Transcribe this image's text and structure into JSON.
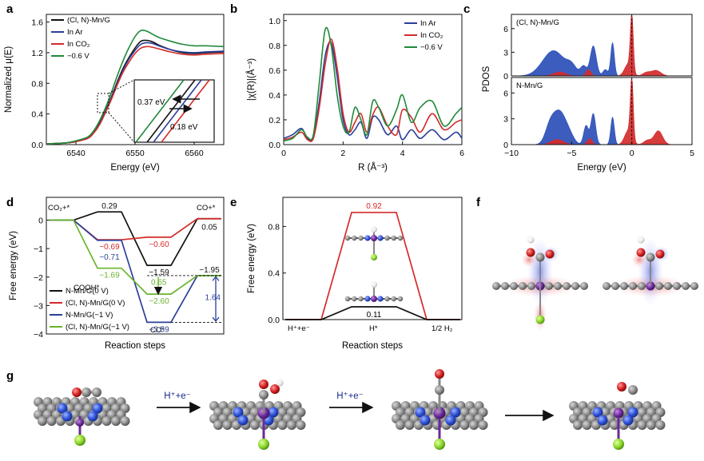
{
  "figure": {
    "panel_letters": [
      "a",
      "b",
      "c",
      "d",
      "e",
      "f",
      "g"
    ]
  },
  "chart_data": [
    {
      "id": "a",
      "type": "line",
      "xlabel": "Energy (eV)",
      "ylabel": "Normalized μ(E)",
      "xlim": [
        6535,
        6565
      ],
      "ylim": [
        0,
        1.7
      ],
      "xticks": [
        "6540",
        "6550",
        "6560"
      ],
      "yticks": [
        "0.0",
        "0.4",
        "0.8",
        "1.2",
        "1.6"
      ],
      "legend": [
        "(Cl, N)-Mn/G",
        "In Ar",
        "In CO₂",
        "−0.6 V"
      ],
      "annotations": [
        "0.37 eV",
        "0.18 eV"
      ],
      "series": [
        {
          "name": "(Cl, N)-Mn/G",
          "color": "#111111",
          "x": [
            6535,
            6538,
            6540,
            6542,
            6543,
            6544,
            6545,
            6546,
            6547,
            6548,
            6549,
            6550,
            6551,
            6552,
            6553,
            6554,
            6556,
            6558,
            6560,
            6562,
            6565
          ],
          "y": [
            0.01,
            0.02,
            0.04,
            0.09,
            0.16,
            0.28,
            0.44,
            0.62,
            0.82,
            1.0,
            1.14,
            1.26,
            1.35,
            1.36,
            1.34,
            1.3,
            1.24,
            1.2,
            1.19,
            1.2,
            1.21
          ]
        },
        {
          "name": "In Ar",
          "color": "#2a3f9a",
          "x": [
            6535,
            6538,
            6540,
            6542,
            6543,
            6544,
            6545,
            6546,
            6547,
            6548,
            6549,
            6550,
            6551,
            6552,
            6553,
            6554,
            6556,
            6558,
            6560,
            6562,
            6565
          ],
          "y": [
            0.01,
            0.02,
            0.04,
            0.09,
            0.16,
            0.27,
            0.43,
            0.61,
            0.8,
            0.98,
            1.12,
            1.23,
            1.31,
            1.33,
            1.32,
            1.29,
            1.24,
            1.21,
            1.2,
            1.21,
            1.22
          ]
        },
        {
          "name": "In CO₂",
          "color": "#d42a2a",
          "x": [
            6535,
            6538,
            6540,
            6542,
            6543,
            6544,
            6545,
            6546,
            6547,
            6548,
            6549,
            6550,
            6551,
            6552,
            6553,
            6554,
            6556,
            6558,
            6560,
            6562,
            6565
          ],
          "y": [
            0.01,
            0.02,
            0.04,
            0.08,
            0.15,
            0.26,
            0.42,
            0.59,
            0.78,
            0.95,
            1.08,
            1.19,
            1.26,
            1.28,
            1.27,
            1.25,
            1.21,
            1.18,
            1.17,
            1.18,
            1.19
          ]
        },
        {
          "name": "−0.6 V",
          "color": "#1f8a3a",
          "x": [
            6535,
            6538,
            6540,
            6542,
            6543,
            6544,
            6545,
            6546,
            6547,
            6548,
            6549,
            6550,
            6551,
            6552,
            6553,
            6554,
            6556,
            6558,
            6560,
            6562,
            6565
          ],
          "y": [
            0.01,
            0.02,
            0.05,
            0.1,
            0.18,
            0.31,
            0.48,
            0.68,
            0.9,
            1.1,
            1.27,
            1.41,
            1.49,
            1.48,
            1.44,
            1.4,
            1.35,
            1.31,
            1.29,
            1.29,
            1.28
          ]
        }
      ]
    },
    {
      "id": "b",
      "type": "line",
      "xlabel": "R (Å⁻³)",
      "ylabel": "|χ(R)|(Å⁻³)",
      "xlim": [
        0,
        6
      ],
      "ylim": [
        0,
        1.05
      ],
      "xticks": [
        "0",
        "2",
        "4",
        "6"
      ],
      "yticks": [
        "0.0",
        "0.2",
        "0.4",
        "0.6",
        "0.8",
        "1.0"
      ],
      "legend": [
        "In Ar",
        "In CO₂",
        "−0.6 V"
      ],
      "series": [
        {
          "name": "In Ar",
          "color": "#2a3f9a",
          "x": [
            0,
            0.3,
            0.6,
            0.8,
            1.0,
            1.2,
            1.4,
            1.6,
            1.8,
            2.0,
            2.2,
            2.4,
            2.6,
            2.8,
            3.0,
            3.2,
            3.5,
            3.8,
            4.0,
            4.3,
            4.6,
            5.0,
            5.4,
            5.8,
            6.0
          ],
          "y": [
            0.05,
            0.08,
            0.13,
            0.05,
            0.06,
            0.35,
            0.72,
            0.82,
            0.55,
            0.2,
            0.08,
            0.12,
            0.18,
            0.05,
            0.22,
            0.2,
            0.08,
            0.15,
            0.04,
            0.12,
            0.05,
            0.12,
            0.04,
            0.1,
            0.05
          ]
        },
        {
          "name": "In CO₂",
          "color": "#d42a2a",
          "x": [
            0,
            0.3,
            0.6,
            0.8,
            1.0,
            1.2,
            1.4,
            1.6,
            1.8,
            2.0,
            2.2,
            2.4,
            2.6,
            2.8,
            3.0,
            3.2,
            3.5,
            3.8,
            4.0,
            4.3,
            4.6,
            5.0,
            5.4,
            5.8,
            6.0
          ],
          "y": [
            0.04,
            0.06,
            0.1,
            0.04,
            0.05,
            0.3,
            0.65,
            0.85,
            0.62,
            0.25,
            0.1,
            0.18,
            0.25,
            0.1,
            0.24,
            0.3,
            0.15,
            0.08,
            0.28,
            0.22,
            0.1,
            0.25,
            0.12,
            0.18,
            0.2
          ]
        },
        {
          "name": "−0.6 V",
          "color": "#1f8a3a",
          "x": [
            0,
            0.3,
            0.6,
            0.8,
            1.0,
            1.2,
            1.4,
            1.6,
            1.8,
            2.0,
            2.2,
            2.4,
            2.6,
            2.8,
            3.0,
            3.2,
            3.5,
            3.8,
            4.0,
            4.3,
            4.6,
            5.0,
            5.4,
            5.8,
            6.0
          ],
          "y": [
            0.03,
            0.05,
            0.12,
            0.06,
            0.08,
            0.5,
            0.93,
            0.8,
            0.4,
            0.15,
            0.1,
            0.3,
            0.2,
            0.08,
            0.35,
            0.3,
            0.15,
            0.28,
            0.4,
            0.18,
            0.3,
            0.35,
            0.15,
            0.25,
            0.3
          ]
        }
      ]
    },
    {
      "id": "c",
      "type": "line",
      "xlabel": "Reaction steps",
      "ylabel": "Free energy (eV)",
      "ylim": [
        -4,
        0.8
      ],
      "yticks": [
        "0",
        "−1",
        "−2",
        "−3",
        "−4"
      ],
      "legend": [
        "N-Mn/G(0 V)",
        "(Cl, N)-Mn/G(0 V)",
        "N-Mn/G(−1 V)",
        "(Cl, N)-Mn/G(−1 V)"
      ],
      "state_labels": [
        "CO₂+*",
        "COOH*",
        "CO*",
        "CO+*"
      ],
      "value_labels": [
        "0.29",
        "−0.69",
        "−0.60",
        "−0.71",
        "−1.59",
        "−1.69",
        "0.05",
        "0.65",
        "−2.60",
        "−3.59",
        "−1.95",
        "1.64"
      ],
      "series": [
        {
          "name": "N-Mn/G(0 V)",
          "color": "#111111",
          "levels": [
            0,
            0.29,
            -1.59,
            0.05
          ]
        },
        {
          "name": "(Cl, N)-Mn/G(0 V)",
          "color": "#d42a2a",
          "levels": [
            0,
            -0.69,
            -0.6,
            0.05
          ]
        },
        {
          "name": "N-Mn/G(−1 V)",
          "color": "#2a3f9a",
          "levels": [
            0,
            -0.71,
            -3.59,
            -1.95
          ]
        },
        {
          "name": "(Cl, N)-Mn/G(−1 V)",
          "color": "#6ab42d",
          "levels": [
            0,
            -1.69,
            -2.6,
            -1.95
          ]
        }
      ]
    },
    {
      "id": "d",
      "type": "line",
      "xlabel": "Reaction steps",
      "ylabel": "Free energy (eV)",
      "ylim": [
        0,
        1.05
      ],
      "yticks": [
        "0.0",
        "0.4",
        "0.8"
      ],
      "state_labels": [
        "H⁺+e⁻",
        "H*",
        "1/2 H₂"
      ],
      "value_labels": [
        "0.92",
        "0.11"
      ],
      "series": [
        {
          "name": "red",
          "color": "#d42a2a",
          "levels": [
            0,
            0.92,
            0
          ]
        },
        {
          "name": "black",
          "color": "#111111",
          "levels": [
            0,
            0.11,
            0
          ]
        }
      ]
    },
    {
      "id": "e",
      "type": "area",
      "xlabel": "Energy (eV)",
      "ylabel": "PDOS",
      "xlim": [
        -10,
        5
      ],
      "xticks": [
        "−10",
        "−5",
        "0",
        "5"
      ],
      "yticks": [
        "0",
        "3",
        "6"
      ],
      "subpanels": [
        {
          "label": "(Cl, N)-Mn/G",
          "blue_peaks": [
            [
              -6.5,
              3.2,
              0.9
            ],
            [
              -5.0,
              1.0,
              0.4
            ],
            [
              -3.2,
              3.8,
              0.25
            ],
            [
              -4.0,
              1.2,
              0.25
            ],
            [
              -1.6,
              4.2,
              0.15
            ],
            [
              -2.2,
              0.8,
              0.2
            ]
          ],
          "red_peaks": [
            [
              0.0,
              7.2,
              0.12
            ],
            [
              -0.3,
              1.5,
              0.3
            ],
            [
              2.0,
              0.7,
              0.4
            ],
            [
              -3.6,
              0.8,
              0.2
            ],
            [
              -6.0,
              0.5,
              0.5
            ],
            [
              1.2,
              0.4,
              0.3
            ]
          ]
        },
        {
          "label": "N-Mn/G",
          "blue_peaks": [
            [
              -6.0,
              3.6,
              0.5
            ],
            [
              -6.8,
              2.0,
              0.4
            ],
            [
              -3.2,
              3.6,
              0.2
            ],
            [
              -3.8,
              2.2,
              0.2
            ],
            [
              -1.6,
              3.2,
              0.15
            ],
            [
              -5.2,
              1.0,
              0.4
            ]
          ],
          "red_peaks": [
            [
              0.0,
              7.0,
              0.12
            ],
            [
              -0.3,
              1.6,
              0.3
            ],
            [
              2.2,
              1.6,
              0.35
            ],
            [
              -3.5,
              0.7,
              0.2
            ],
            [
              -6.2,
              0.6,
              0.5
            ],
            [
              1.3,
              0.5,
              0.3
            ]
          ]
        }
      ]
    }
  ],
  "panel_g": {
    "arrow_labels": [
      "H⁺+e⁻",
      "H⁺+e⁻"
    ]
  },
  "colors": {
    "carbon": "#7a7a7a",
    "nitrogen": "#2b4fd8",
    "mn": "#6a2a9a",
    "oxygen": "#d42020",
    "hydrogen": "#f2f2f2",
    "chlorine": "#8ad62a"
  }
}
